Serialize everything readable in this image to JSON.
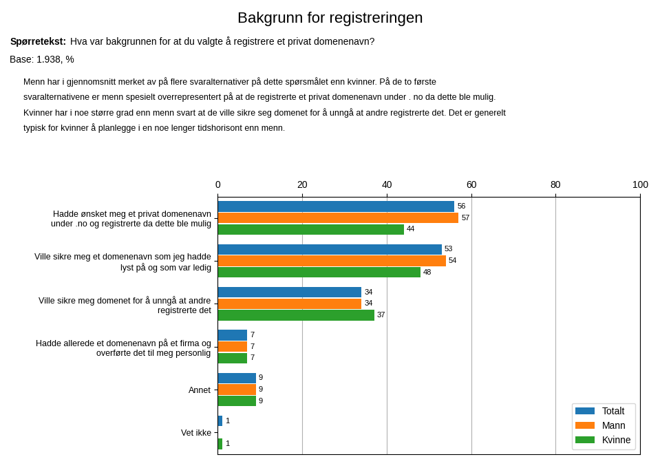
{
  "chart_data": {
    "type": "bar",
    "orientation": "horizontal",
    "title": "Bakgrunn for registreringen",
    "annotations": [
      "Spørretekst:",
      "Hva var bakgrunnen for at du valgte å registrere et privat domenenavn?",
      "Base: 1.938, %",
      "Menn har i gjennomsnitt merket av på flere svaralternativer på dette spørsmålet enn kvinner. På de to første",
      "svaralternativene er menn spesielt overrepresentert på at de registrerte et privat domenenavn under . no da dette ble mulig.",
      "Kvinner har i noe større grad enn menn svart at de ville sikre seg domenet for å unngå at andre registrerte det. Det er generelt",
      "typisk for kvinner å planlegge i en noe lenger tidshorisont enn menn."
    ],
    "categories": [
      "Hadde ønsket meg et privat domenenavn\nunder .no og registrerte da dette ble mulig",
      "Ville sikre meg et domenenavn som jeg hadde\nlyst på og som var ledig",
      "Ville sikre meg domenet for å unngå at andre\nregistrerte det",
      "Hadde allerede et domenenavn på et firma og\noverførte det til meg personlig",
      "Annet",
      "Vet ikke"
    ],
    "series": [
      {
        "name": "Totalt",
        "values": [
          56,
          53,
          34,
          7,
          9,
          1
        ]
      },
      {
        "name": "Mann",
        "values": [
          57,
          54,
          34,
          7,
          9,
          0
        ],
        "value_labels": [
          "57",
          "54",
          "34",
          "7",
          "9",
          null
        ]
      },
      {
        "name": "Kvinne",
        "values": [
          44,
          48,
          37,
          7,
          9,
          1
        ]
      }
    ],
    "xlim": [
      0,
      100
    ],
    "xticks": [
      0,
      20,
      40,
      60,
      80,
      100
    ],
    "grid": true,
    "legend": "lower right",
    "data_labels": true
  }
}
